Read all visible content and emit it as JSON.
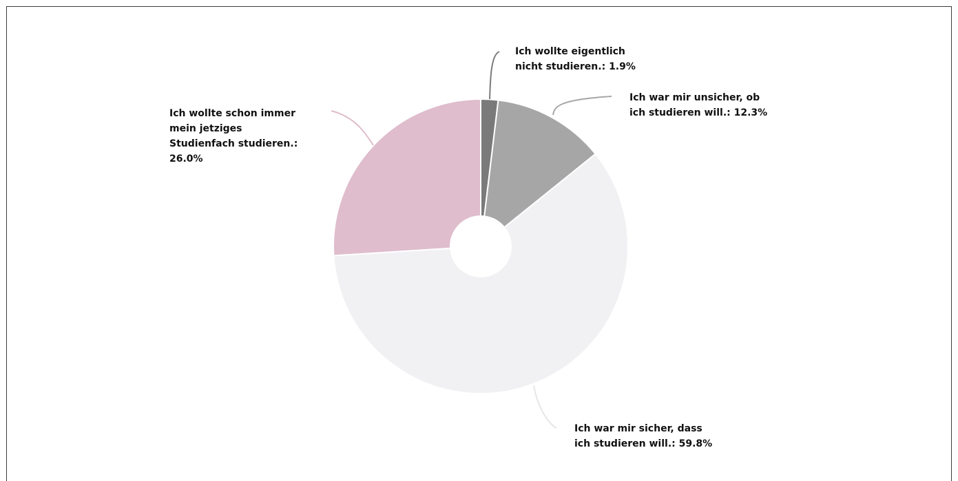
{
  "chart_data": {
    "type": "pie",
    "title": "",
    "donut": true,
    "slices": [
      {
        "label_lines": [
          "Ich wollte eigentlich",
          "nicht studieren.: 1.9%"
        ],
        "value": 1.9,
        "color": "#7a7a7a"
      },
      {
        "label_lines": [
          "Ich war mir unsicher, ob",
          "ich studieren will.: 12.3%"
        ],
        "value": 12.3,
        "color": "#a6a6a6"
      },
      {
        "label_lines": [
          "Ich war mir sicher, dass",
          "ich studieren will.: 59.8%"
        ],
        "value": 59.8,
        "color": "#f1f1f3"
      },
      {
        "label_lines": [
          "Ich wollte schon immer",
          "mein jetziges",
          "Studienfach studieren.:",
          "26.0%"
        ],
        "value": 26.0,
        "color": "#dfbdcc"
      }
    ]
  }
}
